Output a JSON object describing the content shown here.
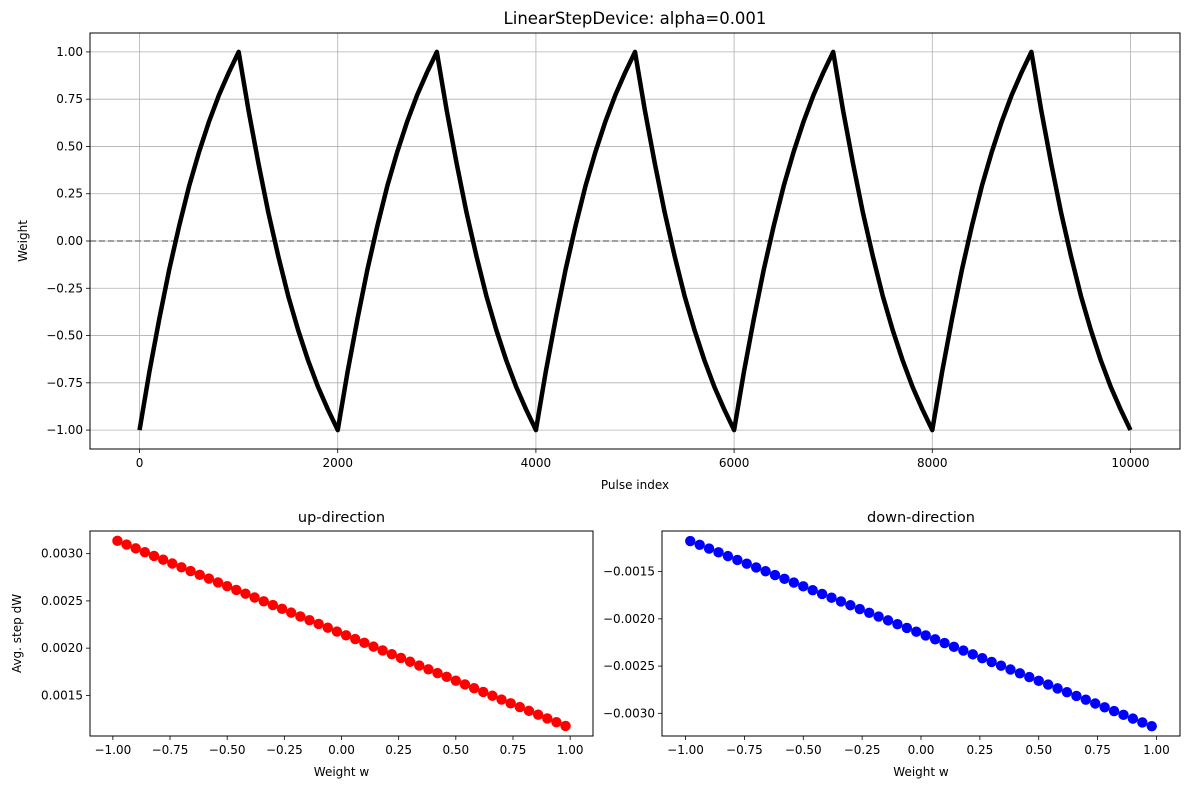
{
  "chart_data": [
    {
      "type": "line",
      "title": "LinearStepDevice: alpha=0.001",
      "xlabel": "Pulse index",
      "ylabel": "Weight",
      "xlim": [
        -500,
        10500
      ],
      "ylim": [
        -1.1,
        1.1
      ],
      "xticks": [
        0,
        2000,
        4000,
        6000,
        8000,
        10000
      ],
      "xtick_labels": [
        "0",
        "2000",
        "4000",
        "6000",
        "8000",
        "10000"
      ],
      "yticks": [
        1.0,
        0.75,
        0.5,
        0.25,
        0.0,
        -0.25,
        -0.5,
        -0.75,
        -1.0
      ],
      "ytick_labels": [
        "1.00",
        "0.75",
        "0.50",
        "0.25",
        "0.00",
        "−0.25",
        "−0.50",
        "−0.75",
        "−1.00"
      ],
      "grid": true,
      "reference_line": {
        "y": 0.0,
        "style": "dashed",
        "color": "#808080"
      },
      "series": [
        {
          "color": "#000000",
          "x": [
            0,
            100,
            200,
            300,
            400,
            500,
            600,
            700,
            800,
            900,
            1000,
            1100,
            1200,
            1300,
            1400,
            1500,
            1600,
            1700,
            1800,
            1900,
            2000,
            2100,
            2200,
            2300,
            2400,
            2500,
            2600,
            2700,
            2800,
            2900,
            3000,
            3100,
            3200,
            3300,
            3400,
            3500,
            3600,
            3700,
            3800,
            3900,
            4000,
            4100,
            4200,
            4300,
            4400,
            4500,
            4600,
            4700,
            4800,
            4900,
            5000,
            5100,
            5200,
            5300,
            5400,
            5500,
            5600,
            5700,
            5800,
            5900,
            6000,
            6100,
            6200,
            6300,
            6400,
            6500,
            6600,
            6700,
            6800,
            6900,
            7000,
            7100,
            7200,
            7300,
            7400,
            7500,
            7600,
            7700,
            7800,
            7900,
            8000,
            8100,
            8200,
            8300,
            8400,
            8500,
            8600,
            8700,
            8800,
            8900,
            9000,
            9100,
            9200,
            9300,
            9400,
            9500,
            9600,
            9700,
            9800,
            9900,
            10000
          ],
          "values": [
            -1.0,
            -0.69,
            -0.41,
            -0.15,
            0.08,
            0.29,
            0.47,
            0.63,
            0.77,
            0.89,
            1.0,
            0.69,
            0.41,
            0.15,
            -0.08,
            -0.29,
            -0.47,
            -0.63,
            -0.77,
            -0.89,
            -1.0,
            -0.69,
            -0.41,
            -0.15,
            0.08,
            0.29,
            0.47,
            0.63,
            0.77,
            0.89,
            1.0,
            0.69,
            0.41,
            0.15,
            -0.08,
            -0.29,
            -0.47,
            -0.63,
            -0.77,
            -0.89,
            -1.0,
            -0.69,
            -0.41,
            -0.15,
            0.08,
            0.29,
            0.47,
            0.63,
            0.77,
            0.89,
            1.0,
            0.69,
            0.41,
            0.15,
            -0.08,
            -0.29,
            -0.47,
            -0.63,
            -0.77,
            -0.89,
            -1.0,
            -0.69,
            -0.41,
            -0.15,
            0.08,
            0.29,
            0.47,
            0.63,
            0.77,
            0.89,
            1.0,
            0.69,
            0.41,
            0.15,
            -0.08,
            -0.29,
            -0.47,
            -0.63,
            -0.77,
            -0.89,
            -1.0,
            -0.69,
            -0.41,
            -0.15,
            0.08,
            0.29,
            0.47,
            0.63,
            0.77,
            0.89,
            1.0,
            0.69,
            0.41,
            0.15,
            -0.08,
            -0.29,
            -0.47,
            -0.63,
            -0.77,
            -0.89,
            -1.0
          ]
        }
      ]
    },
    {
      "type": "scatter",
      "title": "up-direction",
      "xlabel": "Weight w",
      "ylabel": "Avg. step dW",
      "xlim": [
        -1.1,
        1.1
      ],
      "ylim": [
        0.00107,
        0.00324
      ],
      "xticks": [
        -1.0,
        -0.75,
        -0.5,
        -0.25,
        0.0,
        0.25,
        0.5,
        0.75,
        1.0
      ],
      "xtick_labels": [
        "−1.00",
        "−0.75",
        "−0.50",
        "−0.25",
        "0.00",
        "0.25",
        "0.50",
        "0.75",
        "1.00"
      ],
      "yticks": [
        0.0015,
        0.002,
        0.0025,
        0.003
      ],
      "ytick_labels": [
        "0.0015",
        "0.0020",
        "0.0025",
        "0.0030"
      ],
      "grid": false,
      "series": [
        {
          "color": "#ff0000",
          "x": [
            -0.98,
            -0.94,
            -0.9,
            -0.86,
            -0.82,
            -0.78,
            -0.74,
            -0.7,
            -0.66,
            -0.62,
            -0.58,
            -0.54,
            -0.5,
            -0.46,
            -0.42,
            -0.38,
            -0.34,
            -0.3,
            -0.26,
            -0.22,
            -0.18,
            -0.14,
            -0.1,
            -0.06,
            -0.02,
            0.02,
            0.06,
            0.1,
            0.14,
            0.18,
            0.22,
            0.26,
            0.3,
            0.34,
            0.38,
            0.42,
            0.46,
            0.5,
            0.54,
            0.58,
            0.62,
            0.66,
            0.7,
            0.74,
            0.78,
            0.82,
            0.86,
            0.9,
            0.94,
            0.98
          ],
          "values": [
            0.003136,
            0.003096,
            0.003056,
            0.003016,
            0.002976,
            0.002936,
            0.002896,
            0.002856,
            0.002816,
            0.002776,
            0.002736,
            0.002696,
            0.002656,
            0.002616,
            0.002576,
            0.002536,
            0.002496,
            0.002456,
            0.002416,
            0.002376,
            0.002336,
            0.002296,
            0.002256,
            0.002216,
            0.002176,
            0.002136,
            0.002096,
            0.002056,
            0.002016,
            0.001976,
            0.001936,
            0.001896,
            0.001856,
            0.001816,
            0.001776,
            0.001736,
            0.001696,
            0.001656,
            0.001616,
            0.001576,
            0.001536,
            0.001496,
            0.001456,
            0.001416,
            0.001376,
            0.001336,
            0.001296,
            0.001256,
            0.001216,
            0.001176
          ]
        }
      ]
    },
    {
      "type": "scatter",
      "title": "down-direction",
      "xlabel": "Weight w",
      "ylabel": "",
      "xlim": [
        -1.1,
        1.1
      ],
      "ylim": [
        -0.00324,
        -0.00107
      ],
      "xticks": [
        -1.0,
        -0.75,
        -0.5,
        -0.25,
        0.0,
        0.25,
        0.5,
        0.75,
        1.0
      ],
      "xtick_labels": [
        "−1.00",
        "−0.75",
        "−0.50",
        "−0.25",
        "0.00",
        "0.25",
        "0.50",
        "0.75",
        "1.00"
      ],
      "yticks": [
        -0.0015,
        -0.002,
        -0.0025,
        -0.003
      ],
      "ytick_labels": [
        "−0.0015",
        "−0.0020",
        "−0.0025",
        "−0.0030"
      ],
      "grid": false,
      "series": [
        {
          "color": "#0000ff",
          "x": [
            -0.98,
            -0.94,
            -0.9,
            -0.86,
            -0.82,
            -0.78,
            -0.74,
            -0.7,
            -0.66,
            -0.62,
            -0.58,
            -0.54,
            -0.5,
            -0.46,
            -0.42,
            -0.38,
            -0.34,
            -0.3,
            -0.26,
            -0.22,
            -0.18,
            -0.14,
            -0.1,
            -0.06,
            -0.02,
            0.02,
            0.06,
            0.1,
            0.14,
            0.18,
            0.22,
            0.26,
            0.3,
            0.34,
            0.38,
            0.42,
            0.46,
            0.5,
            0.54,
            0.58,
            0.62,
            0.66,
            0.7,
            0.74,
            0.78,
            0.82,
            0.86,
            0.9,
            0.94,
            0.98
          ],
          "values": [
            -0.001176,
            -0.001216,
            -0.001256,
            -0.001296,
            -0.001336,
            -0.001376,
            -0.001416,
            -0.001456,
            -0.001496,
            -0.001536,
            -0.001576,
            -0.001616,
            -0.001656,
            -0.001696,
            -0.001736,
            -0.001776,
            -0.001816,
            -0.001856,
            -0.001896,
            -0.001936,
            -0.001976,
            -0.002016,
            -0.002056,
            -0.002096,
            -0.002136,
            -0.002176,
            -0.002216,
            -0.002256,
            -0.002296,
            -0.002336,
            -0.002376,
            -0.002416,
            -0.002456,
            -0.002496,
            -0.002536,
            -0.002576,
            -0.002616,
            -0.002656,
            -0.002696,
            -0.002736,
            -0.002776,
            -0.002816,
            -0.002856,
            -0.002896,
            -0.002936,
            -0.002976,
            -0.003016,
            -0.003056,
            -0.003096,
            -0.003136
          ]
        }
      ]
    }
  ]
}
